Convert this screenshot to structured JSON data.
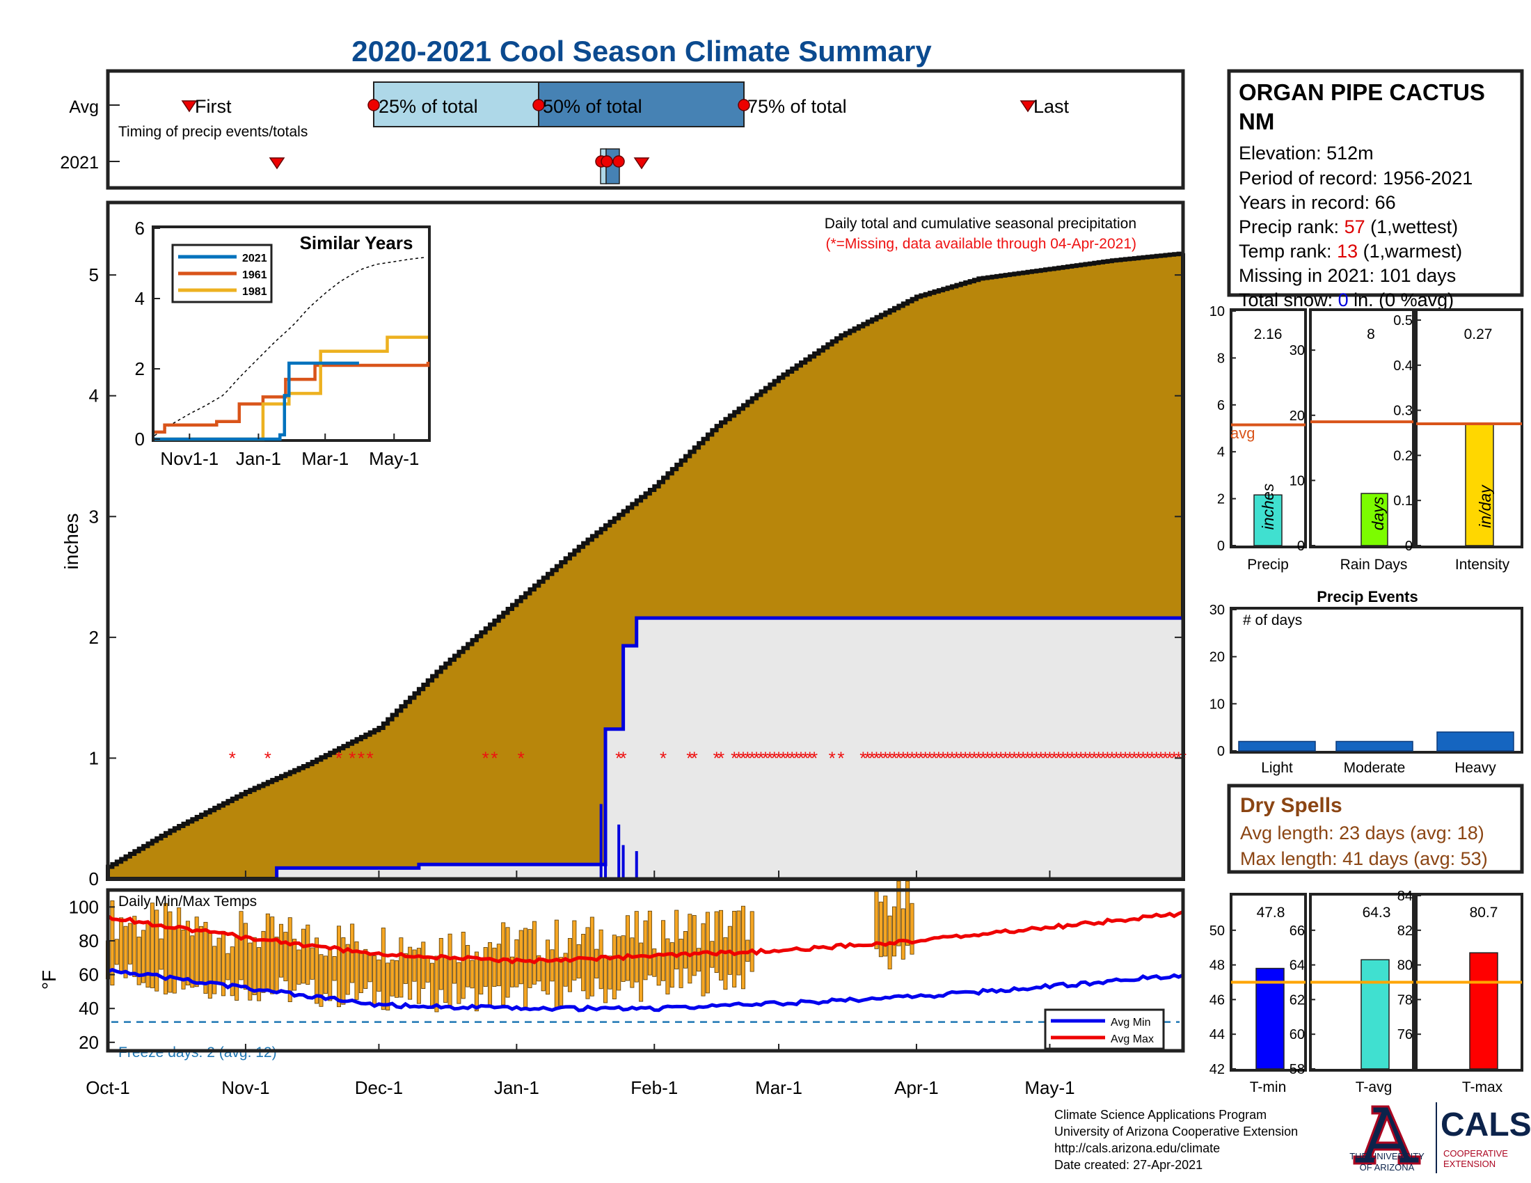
{
  "title": "2020-2021 Cool Season Climate Summary",
  "colors": {
    "title": "#0b4a8f",
    "cumulative_fill": "#b8860b",
    "cumulative_edge": "#111111",
    "season2021_line": "#0000dd",
    "season2021_fill": "#e8e8e8",
    "missing": "#ee1111",
    "avg_min": "#0000ee",
    "avg_max": "#ee0000",
    "bars_temp": "#f5a623",
    "freeze": "#1f77b4",
    "avg_ref": "#d9541a",
    "stats_red": "#dd0000",
    "dry_spell": "#8b4513",
    "ua_navy": "#0c234b",
    "ua_red": "#ab0520",
    "precip_bar": "#40e0d0",
    "days_bar": "#7cfc00",
    "intensity_bar": "#ffd700",
    "tmin_bar": "#0000ff",
    "tavg_bar": "#40e0d0",
    "tmax_bar": "#ff0000",
    "avg_ref_temp": "#ffa500",
    "event_bar": "#1565c0"
  },
  "timing": {
    "row_labels": [
      "Avg",
      "2021"
    ],
    "subtitle": "Timing of precip events/totals",
    "avg_markers": [
      "First",
      "25% of total",
      "50% of total",
      "75% of total",
      "Last"
    ]
  },
  "main": {
    "ylabel": "inches",
    "yticks": [
      "0",
      "1",
      "2",
      "3",
      "4",
      "5"
    ],
    "note1": "Daily total and cumulative seasonal precipitation",
    "note2": "(*=Missing, data available through 04-Apr-2021)",
    "inset": {
      "title": "Similar Years",
      "legend": [
        "2021",
        "1961",
        "1981"
      ],
      "yticks": [
        "0",
        "2",
        "4",
        "6"
      ],
      "xticks": [
        "Nov1-1",
        "Jan-1",
        "Mar-1",
        "May-1"
      ]
    }
  },
  "temps": {
    "label": "Daily Min/Max Temps",
    "ylabel": "°F",
    "yticks": [
      "20",
      "40",
      "60",
      "80",
      "100"
    ],
    "legend": [
      "Avg Min",
      "Avg Max"
    ],
    "freeze_text": "Freeze days: 2 (avg. 12)"
  },
  "xaxis": {
    "labels": [
      "Oct-1",
      "Nov-1",
      "Dec-1",
      "Jan-1",
      "Feb-1",
      "Mar-1",
      "Apr-1",
      "May-1"
    ]
  },
  "info": {
    "station": "ORGAN PIPE CACTUS NM",
    "station_line1": "ORGAN PIPE CACTUS",
    "station_line2": "NM",
    "elevation": "Elevation: 512m",
    "period": "Period of record: 1956-2021",
    "years": "Years in record: 66",
    "precip_rank_label": "Precip rank: ",
    "precip_rank_value": "57",
    "precip_rank_note": " (1,wettest)",
    "temp_rank_label": "Temp rank: ",
    "temp_rank_value": "13",
    "temp_rank_note": " (1,warmest)",
    "missing": "Missing in 2021: 101 days",
    "snow_label": "Total snow: ",
    "snow_value": "0",
    "snow_note": " in. (0 %avg)"
  },
  "stats": {
    "precip": {
      "value": "2.16",
      "unit": "inches",
      "label": "Precip",
      "avg_text": "avg",
      "yticks": [
        "0",
        "2",
        "4",
        "6",
        "8",
        "10"
      ]
    },
    "raindays": {
      "value": "8",
      "unit": "days",
      "label": "Rain Days",
      "yticks": [
        "0",
        "10",
        "20",
        "30"
      ]
    },
    "intensity": {
      "value": "0.27",
      "unit": "in/day",
      "label": "Intensity",
      "yticks": [
        "0",
        "0.1",
        "0.2",
        "0.3",
        "0.4",
        "0.5"
      ]
    }
  },
  "events": {
    "title": "Precip Events",
    "ylabel": "# of days",
    "yticks": [
      "0",
      "10",
      "20",
      "30"
    ],
    "categories": [
      "Light",
      "Moderate",
      "Heavy"
    ]
  },
  "dry_spells": {
    "title": "Dry Spells",
    "avg": "Avg length: 23 days (avg: 18)",
    "max": "Max length: 41 days (avg: 53)"
  },
  "temp_stats": {
    "tmin": {
      "value": "47.8",
      "label": "T-min",
      "yticks": [
        "42",
        "44",
        "46",
        "48",
        "50"
      ]
    },
    "tavg": {
      "value": "64.3",
      "label": "T-avg",
      "yticks": [
        "58",
        "60",
        "62",
        "64",
        "66"
      ]
    },
    "tmax": {
      "value": "80.7",
      "label": "T-max",
      "yticks": [
        "76",
        "78",
        "80",
        "82",
        "84"
      ]
    }
  },
  "footer": {
    "line1": "Climate Science Applications Program",
    "line2": "University of Arizona Cooperative Extension",
    "line3": "http://cals.arizona.edu/climate",
    "line4": " Date created: 27-Apr-2021",
    "ua_line1": "THE UNIVERSITY",
    "ua_line2": "OF ARIZONA",
    "cals": "CALS",
    "cals_sub1": "COOPERATIVE",
    "cals_sub2": "EXTENSION"
  },
  "chart_data": [
    {
      "type": "line",
      "name": "cumulative seasonal precipitation",
      "xlabel": "",
      "ylabel": "inches",
      "ylim": [
        0,
        5.6
      ],
      "x_ticks": [
        "Oct-1",
        "Nov-1",
        "Dec-1",
        "Jan-1",
        "Feb-1",
        "Mar-1",
        "Apr-1",
        "May-1"
      ],
      "series": [
        {
          "x": [
            "Oct-1",
            "Oct-15",
            "Nov-1",
            "Nov-15",
            "Dec-1",
            "Dec-15",
            "Jan-1",
            "Jan-15",
            "Feb-1",
            "Feb-15",
            "Mar-1",
            "Mar-15",
            "Apr-1",
            "Apr-15",
            "May-1",
            "May-15",
            "May-31"
          ],
          "values": [
            0.1,
            0.4,
            0.72,
            0.95,
            1.25,
            1.75,
            2.3,
            2.75,
            3.25,
            3.75,
            4.15,
            4.5,
            4.82,
            4.97,
            5.05,
            5.12,
            5.18
          ]
        },
        {
          "name": "2021",
          "x": [
            "Oct-1",
            "Nov-8",
            "Dec-10",
            "Jan-20",
            "Jan-21",
            "Jan-24",
            "Jan-25",
            "Jan-28",
            "May-31"
          ],
          "values": [
            0,
            0.09,
            0.12,
            0.12,
            1.24,
            1.24,
            1.93,
            2.16,
            2.16
          ]
        }
      ],
      "missing_marker_level": 1,
      "daily_bars": {
        "x": [
          "Jan-20",
          "Jan-21",
          "Jan-24",
          "Jan-25",
          "Jan-28"
        ],
        "values": [
          0.62,
          0.6,
          0.45,
          0.28,
          0.23
        ]
      }
    },
    {
      "type": "line",
      "title": "Similar Years",
      "ylim": [
        0,
        6
      ],
      "x_ticks": [
        "Nov1-1",
        "Jan-1",
        "Mar-1",
        "May-1"
      ],
      "series": [
        {
          "name": "2021",
          "x": [
            "Oct-1",
            "Jan-20",
            "Jan-24",
            "Jan-28",
            "Mar-31"
          ],
          "values": [
            0,
            0.12,
            1.24,
            2.16,
            2.16
          ]
        },
        {
          "name": "1961",
          "x": [
            "Oct-1",
            "Oct-10",
            "Nov-25",
            "Dec-15",
            "Jan-5",
            "Jan-25",
            "Feb-20",
            "May-31"
          ],
          "values": [
            0.2,
            0.4,
            0.5,
            1.0,
            1.2,
            1.7,
            2.1,
            2.2
          ]
        },
        {
          "name": "1981",
          "x": [
            "Oct-1",
            "Jan-1",
            "Jan-5",
            "Jan-28",
            "Feb-25",
            "Apr-25",
            "May-31"
          ],
          "values": [
            0,
            0,
            1.0,
            1.3,
            2.5,
            2.9,
            2.9
          ]
        }
      ]
    },
    {
      "type": "bar",
      "title": "Daily Min/Max Temps",
      "ylabel": "°F",
      "ylim": [
        15,
        110
      ],
      "series": [
        {
          "name": "Avg Min",
          "x": [
            "Oct-1",
            "Nov-1",
            "Dec-1",
            "Jan-1",
            "Feb-1",
            "Mar-1",
            "Apr-1",
            "May-1",
            "May-31"
          ],
          "values": [
            63,
            52,
            42,
            40,
            40,
            43,
            47,
            53,
            60
          ]
        },
        {
          "name": "Avg Max",
          "x": [
            "Oct-1",
            "Nov-1",
            "Dec-1",
            "Jan-1",
            "Feb-1",
            "Mar-1",
            "Apr-1",
            "May-1",
            "May-31"
          ],
          "values": [
            94,
            82,
            72,
            68,
            71,
            74,
            80,
            88,
            96
          ]
        }
      ],
      "freeze_threshold": 32
    },
    {
      "type": "bar",
      "categories": [
        "Precip"
      ],
      "values": [
        2.16
      ],
      "avg": 5.15,
      "ylim": [
        0,
        10
      ]
    },
    {
      "type": "bar",
      "categories": [
        "Rain Days"
      ],
      "values": [
        8
      ],
      "avg": 19,
      "ylim": [
        0,
        36
      ]
    },
    {
      "type": "bar",
      "categories": [
        "Intensity"
      ],
      "values": [
        0.27
      ],
      "avg": 0.27,
      "ylim": [
        0,
        0.52
      ]
    },
    {
      "type": "bar",
      "title": "Precip Events",
      "categories": [
        "Light",
        "Moderate",
        "Heavy"
      ],
      "values": [
        2,
        2,
        4
      ],
      "ylim": [
        0,
        30
      ]
    },
    {
      "type": "bar",
      "categories": [
        "T-min"
      ],
      "values": [
        47.8
      ],
      "avg": 47,
      "ylim": [
        42,
        52
      ]
    },
    {
      "type": "bar",
      "categories": [
        "T-avg"
      ],
      "values": [
        64.3
      ],
      "avg": 63,
      "ylim": [
        58,
        68
      ]
    },
    {
      "type": "bar",
      "categories": [
        "T-max"
      ],
      "values": [
        80.7
      ],
      "avg": 79,
      "ylim": [
        74,
        84
      ]
    }
  ]
}
